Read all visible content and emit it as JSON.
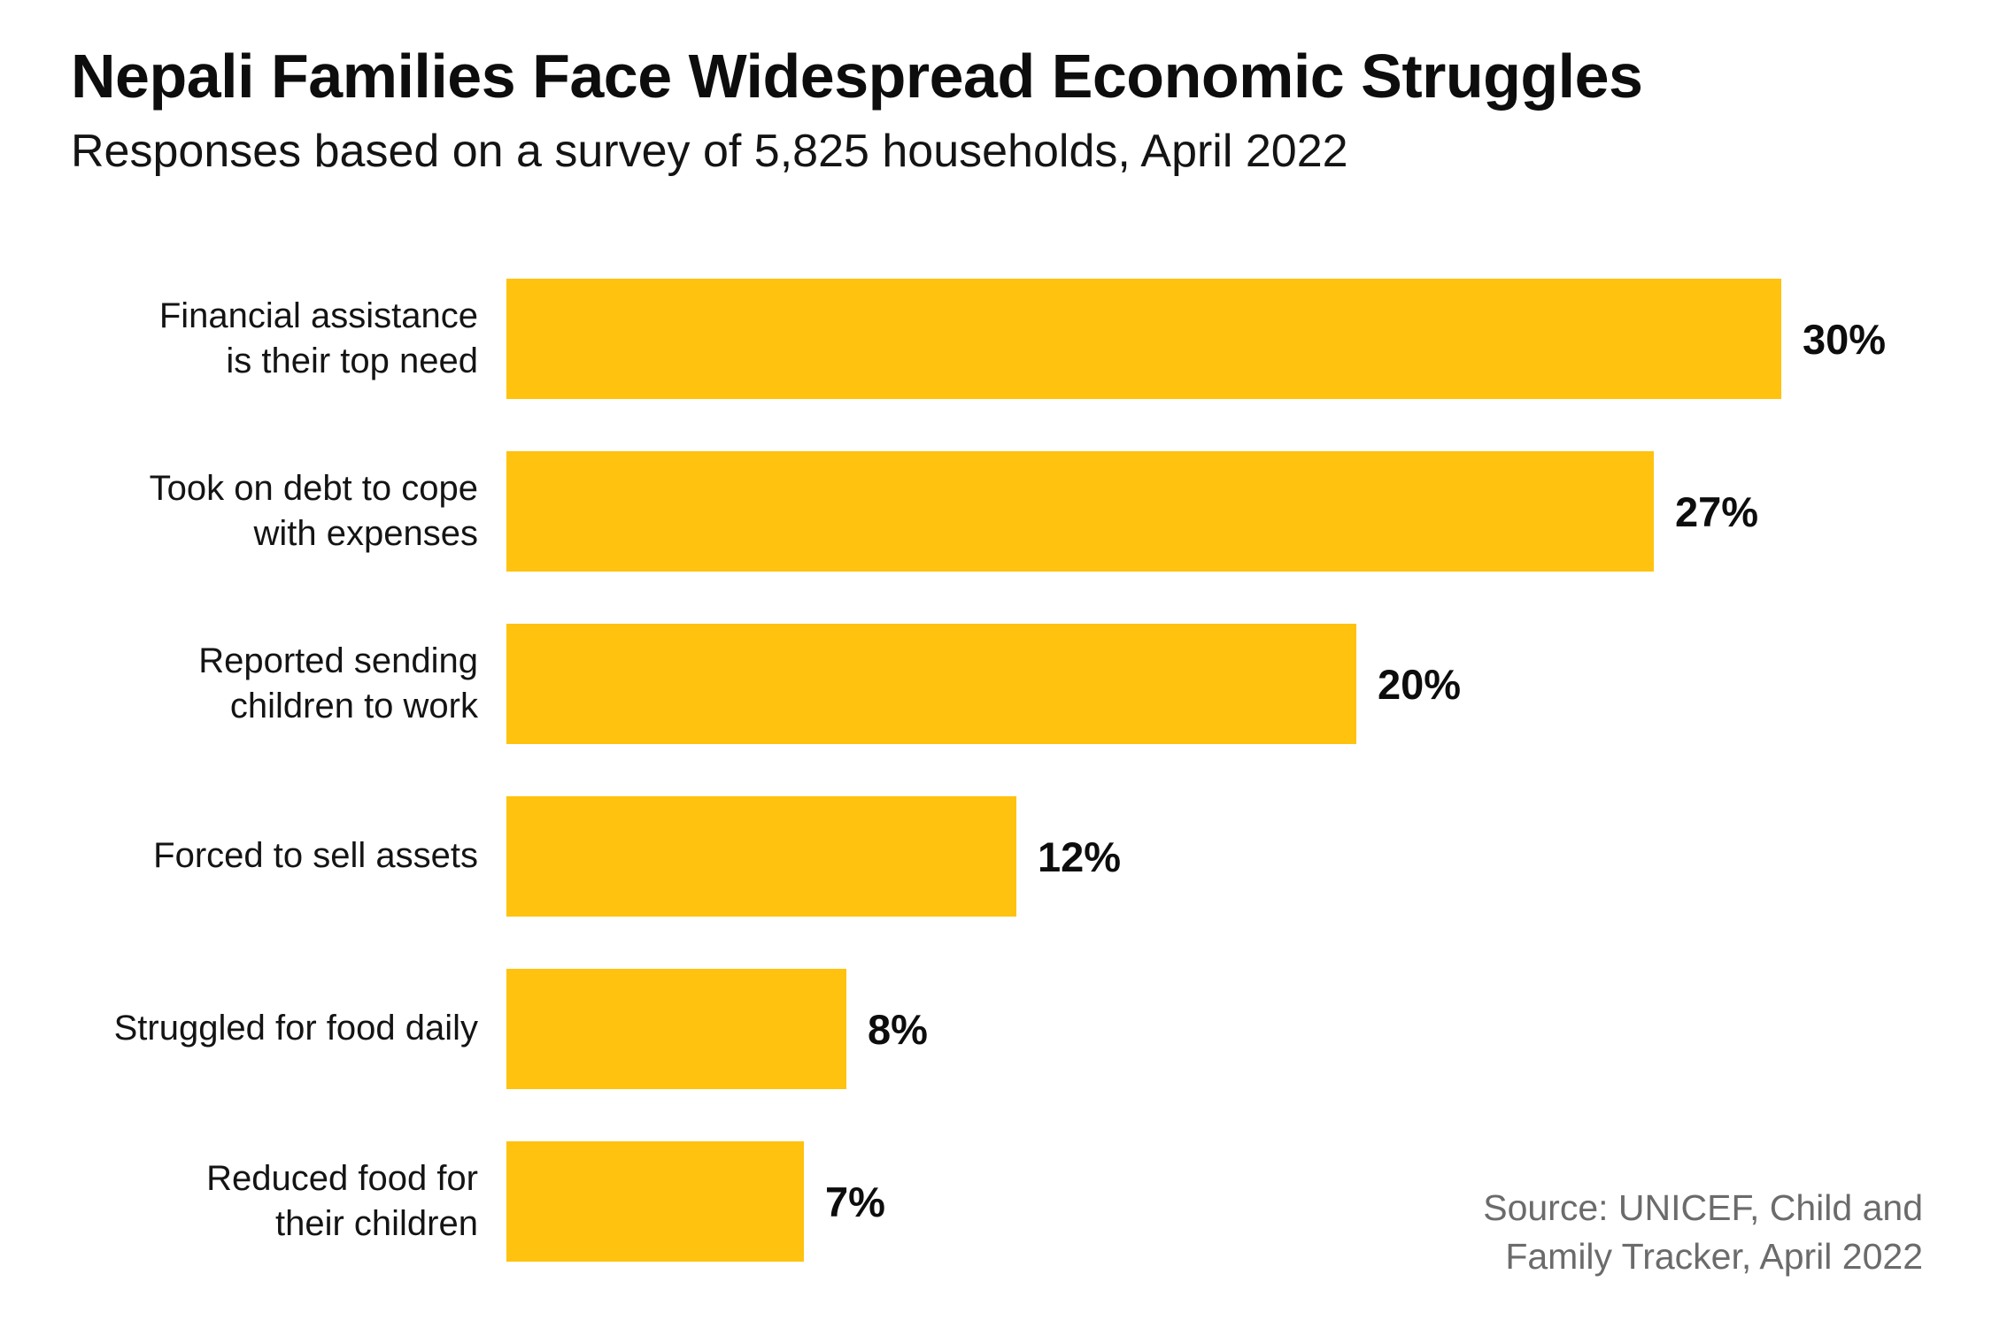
{
  "header": {
    "title": "Nepali Families Face Widespread Economic Struggles",
    "subtitle": "Responses based on a survey of 5,825 households, April 2022"
  },
  "chart_data": {
    "type": "bar",
    "orientation": "horizontal",
    "title": "Nepali Families Face Widespread Economic Struggles",
    "subtitle": "Responses based on a survey of 5,825 households, April 2022",
    "xlabel": "",
    "ylabel": "",
    "xlim": [
      0,
      30
    ],
    "grid": false,
    "legend": false,
    "axis_lines": false,
    "bar_color": "#FFC20E",
    "categories": [
      "Financial assistance is their top need",
      "Took on debt to cope with expenses",
      "Reported sending children to work",
      "Forced to sell assets",
      "Struggled for food daily",
      "Reduced food for their children"
    ],
    "label_line_breaks": [
      [
        "Financial assistance",
        "is their top need"
      ],
      [
        "Took on debt to cope",
        "with expenses"
      ],
      [
        "Reported sending",
        "children to work"
      ],
      [
        "Forced to sell assets"
      ],
      [
        "Struggled for food daily"
      ],
      [
        "Reduced food for",
        "their children"
      ]
    ],
    "values": [
      30,
      27,
      20,
      12,
      8,
      7
    ],
    "data_labels": [
      "30%",
      "27%",
      "20%",
      "12%",
      "8%",
      "7%"
    ]
  },
  "source": {
    "line1": "Source: UNICEF, Child and",
    "line2": "Family Tracker, April 2022",
    "color": "#6b6b6b"
  }
}
